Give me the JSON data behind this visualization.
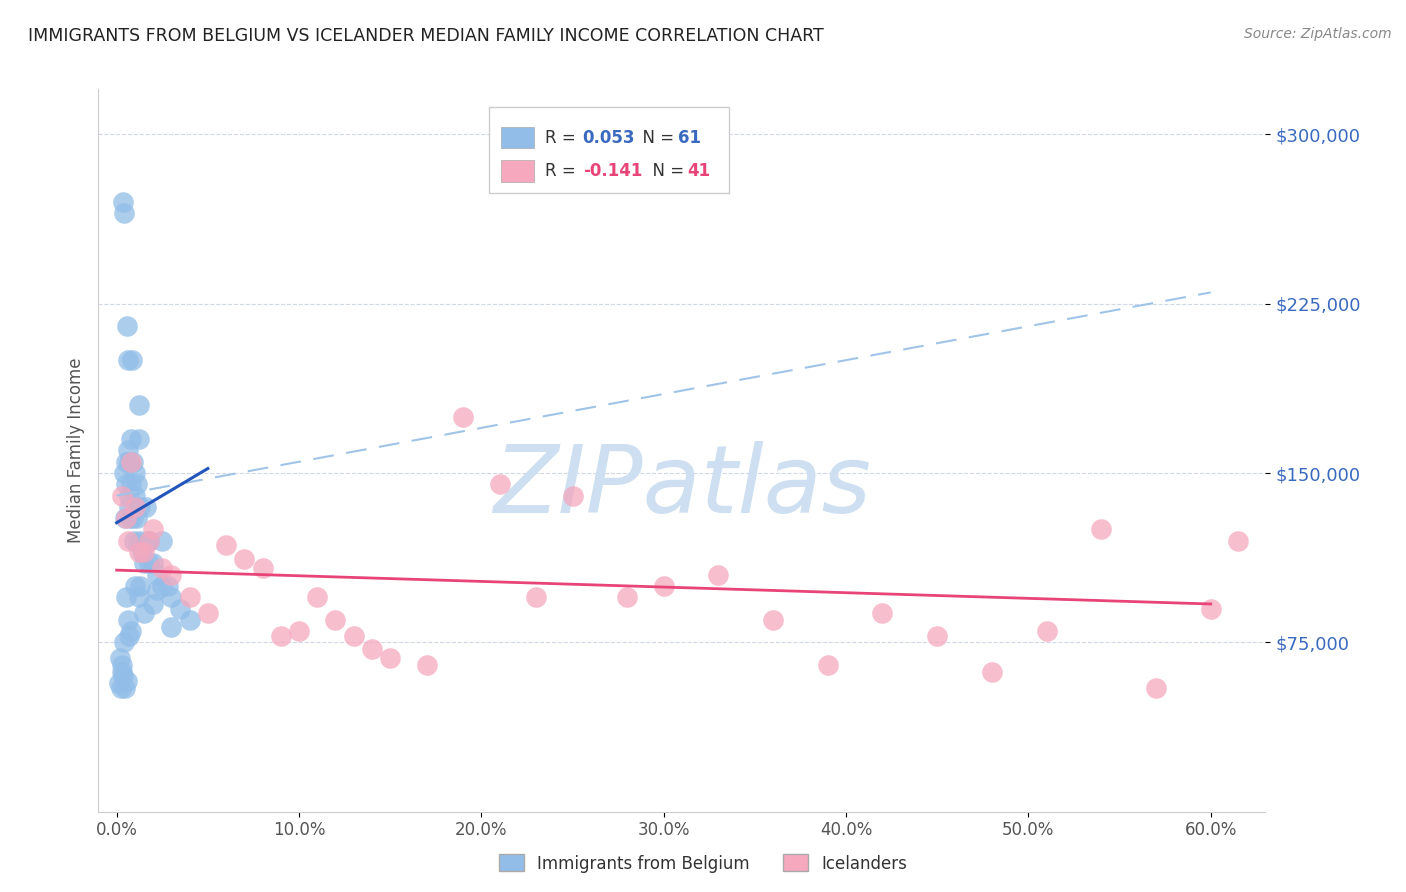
{
  "title": "IMMIGRANTS FROM BELGIUM VS ICELANDER MEDIAN FAMILY INCOME CORRELATION CHART",
  "source": "Source: ZipAtlas.com",
  "ylabel": "Median Family Income",
  "ytick_vals": [
    75000,
    150000,
    225000,
    300000
  ],
  "ytick_labels": [
    "$75,000",
    "$150,000",
    "$225,000",
    "$300,000"
  ],
  "xtick_vals": [
    0,
    10,
    20,
    30,
    40,
    50,
    60
  ],
  "xtick_labels": [
    "0.0%",
    "10.0%",
    "20.0%",
    "30.0%",
    "40.0%",
    "50.0%",
    "60.0%"
  ],
  "ylim": [
    0,
    320000
  ],
  "xlim": [
    -1,
    63
  ],
  "blue_color": "#92bde8",
  "pink_color": "#f5a8be",
  "blue_line_color": "#2255bb",
  "pink_line_color": "#e84478",
  "dashed_line_color": "#a0c4e8",
  "watermark": "ZIPatlas",
  "watermark_color": "#cddff0",
  "blue_reg_x0": 0,
  "blue_reg_y0": 128000,
  "blue_reg_x1": 5,
  "blue_reg_y1": 152000,
  "dash_x0": 0,
  "dash_y0": 140000,
  "dash_x1": 60,
  "dash_y1": 230000,
  "pink_reg_x0": 0,
  "pink_reg_y0": 107000,
  "pink_reg_x1": 60,
  "pink_reg_y1": 92000,
  "belgium_x": [
    0.15,
    0.25,
    0.3,
    0.35,
    0.4,
    0.4,
    0.45,
    0.5,
    0.5,
    0.55,
    0.6,
    0.6,
    0.65,
    0.7,
    0.7,
    0.75,
    0.8,
    0.8,
    0.85,
    0.9,
    0.9,
    0.95,
    1.0,
    1.0,
    1.1,
    1.1,
    1.2,
    1.2,
    1.3,
    1.3,
    1.4,
    1.5,
    1.6,
    1.7,
    1.8,
    2.0,
    2.2,
    2.5,
    2.8,
    3.0,
    3.5,
    4.0,
    0.2,
    0.3,
    0.4,
    0.5,
    0.6,
    0.7,
    0.8,
    1.0,
    1.2,
    1.5,
    2.0,
    2.5,
    3.0,
    0.35,
    0.45,
    0.55,
    1.3,
    1.8,
    2.2
  ],
  "belgium_y": [
    57000,
    55000,
    65000,
    270000,
    265000,
    150000,
    130000,
    145000,
    155000,
    215000,
    200000,
    160000,
    135000,
    155000,
    140000,
    130000,
    165000,
    145000,
    200000,
    130000,
    155000,
    120000,
    150000,
    140000,
    145000,
    130000,
    165000,
    180000,
    120000,
    135000,
    115000,
    110000,
    135000,
    120000,
    120000,
    110000,
    105000,
    120000,
    100000,
    95000,
    90000,
    85000,
    68000,
    62000,
    75000,
    95000,
    85000,
    78000,
    80000,
    100000,
    95000,
    88000,
    92000,
    100000,
    82000,
    60000,
    55000,
    58000,
    100000,
    110000,
    98000
  ],
  "iceland_x": [
    0.3,
    0.5,
    0.6,
    0.8,
    1.0,
    1.2,
    1.5,
    1.8,
    2.0,
    2.5,
    3.0,
    4.0,
    5.0,
    6.0,
    7.0,
    8.0,
    9.0,
    10.0,
    11.0,
    12.0,
    13.0,
    14.0,
    15.0,
    17.0,
    19.0,
    21.0,
    23.0,
    25.0,
    28.0,
    30.0,
    33.0,
    36.0,
    39.0,
    42.0,
    45.0,
    48.0,
    51.0,
    54.0,
    57.0,
    60.0,
    61.5
  ],
  "iceland_y": [
    140000,
    130000,
    120000,
    155000,
    135000,
    115000,
    115000,
    120000,
    125000,
    108000,
    105000,
    95000,
    88000,
    118000,
    112000,
    108000,
    78000,
    80000,
    95000,
    85000,
    78000,
    72000,
    68000,
    65000,
    175000,
    145000,
    95000,
    140000,
    95000,
    100000,
    105000,
    85000,
    65000,
    88000,
    78000,
    62000,
    80000,
    125000,
    55000,
    90000,
    120000
  ]
}
